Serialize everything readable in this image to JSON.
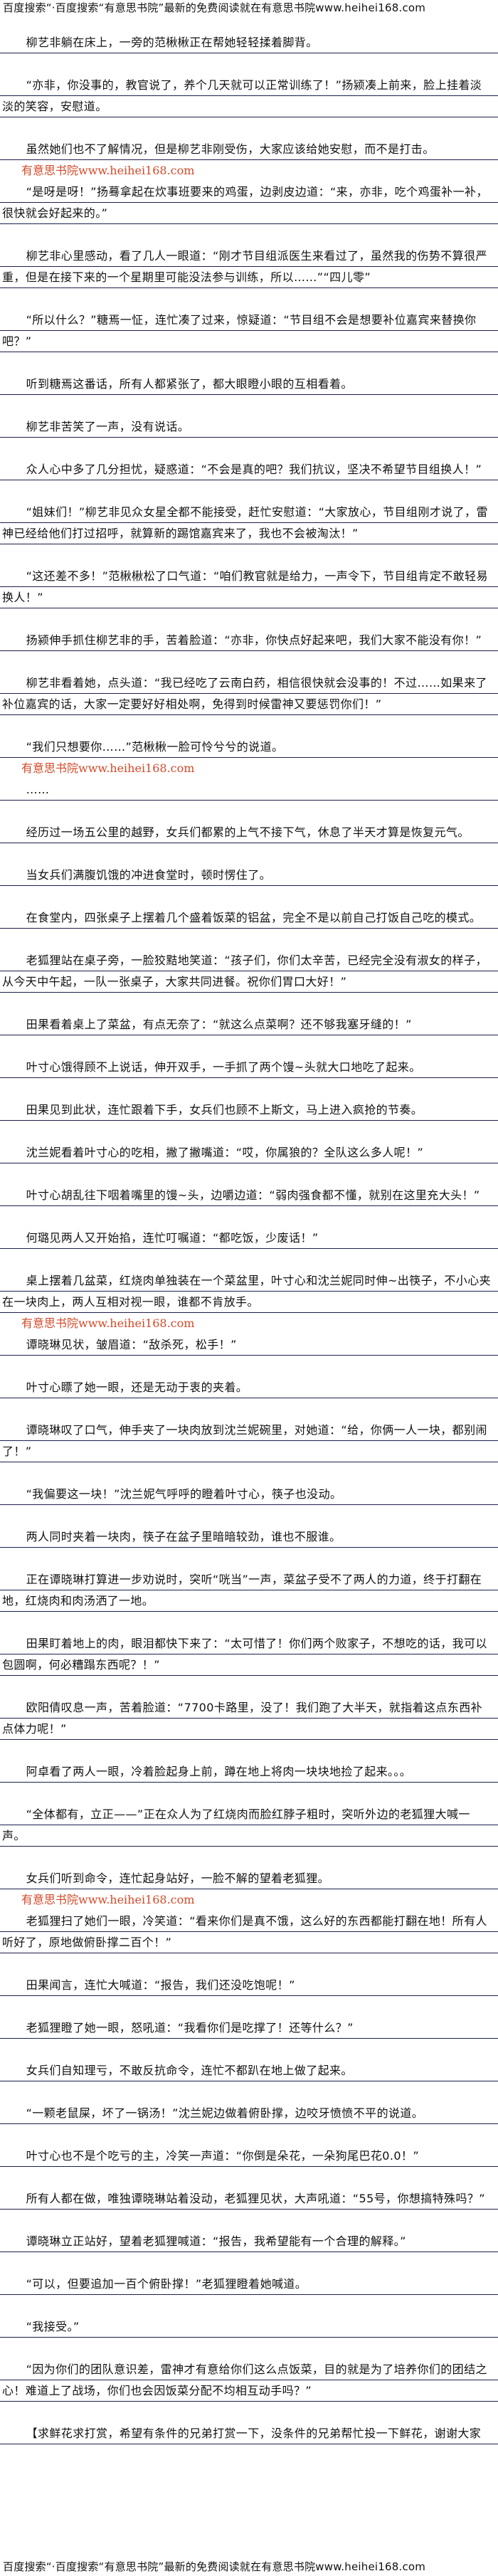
{
  "banner": "百度搜索“·百度搜索“有意思书院”最新的免费阅读就在有意思书院www.heihei168.com",
  "watermark": "有意思书院www.heihei168.com",
  "paragraphs": [
    "柳艺非躺在床上，一旁的范楸楸正在帮她轻轻揉着脚背。",
    "“亦非，你没事的，教官说了，养个几天就可以正常训练了！”扬颍凑上前来，脸上挂着淡淡的笑容，安慰道。",
    "虽然她们也不了解情况，但是柳艺非刚受伤，大家应该给她安慰，而不是打击。",
    "“是呀是呀！”扬蓦拿起在炊事班要来的鸡蛋，边剥皮边道：“来，亦非，吃个鸡蛋补一补，很快就会好起来的。”",
    "柳艺非心里感动，看了几人一眼道：“刚才节目组派医生来看过了，虽然我的伤势不算很严重，但是在接下来的一个星期里可能没法参与训练，所以……”“四儿零”",
    "“所以什么？”糖焉一怔，连忙凑了过来，惊疑道：“节目组不会是想要补位嘉宾来替换你吧？”",
    "听到糖焉这番话，所有人都紧张了，都大眼瞪小眼的互相看着。",
    "柳艺非苦笑了一声，没有说话。",
    "众人心中多了几分担忧，疑惑道：“不会是真的吧？我们抗议，坚决不希望节目组换人！”",
    "“姐妹们！”柳艺非见众女星全都不能接受，赶忙安慰道：“大家放心，节目组刚才说了，雷神已经给他们打过招呼，就算新的踢馆嘉宾来了，我也不会被淘汰！”",
    "“这还差不多！”范楸楸松了口气道：“咱们教官就是给力，一声令下，节目组肯定不敢轻易换人！”",
    "扬颍伸手抓住柳艺非的手，苦着脸道：“亦非，你快点好起来吧，我们大家不能没有你！”",
    "柳艺非看着她，点头道：“我已经吃了云南白药，相信很快就会没事的！不过……如果来了补位嘉宾的话，大家一定要好好相处啊，免得到时候雷神又要惩罚你们！”",
    "“我们只想要你……”范楸楸一脸可怜兮兮的说道。",
    "……",
    "经历过一场五公里的越野，女兵们都累的上气不接下气，休息了半天才算是恢复元气。",
    "当女兵们满腹饥饿的冲进食堂时，顿时愣住了。",
    "在食堂内，四张桌子上摆着几个盛着饭菜的铝盆，完全不是以前自己打饭自己吃的模式。",
    "老狐狸站在桌子旁，一脸狡黠地笑道：“孩子们，你们太辛苦，已经完全没有淑女的样子，从今天中午起，一队一张桌子，大家共同进餐。祝你们胃口大好！”",
    "田果看着桌上了菜盆，有点无奈了：“就这么点菜啊？还不够我塞牙缝的！”",
    "叶寸心饿得顾不上说话，伸开双手，一手抓了两个馒~头就大口地吃了起来。",
    "田果见到此状，连忙跟着下手，女兵们也顾不上斯文，马上进入疯抢的节奏。",
    "沈兰妮看着叶寸心的吃相，撇了撇嘴道：“哎，你属狼的？全队这么多人呢！”",
    "叶寸心胡乱往下咽着嘴里的馒~头，边嚼边道：“弱肉强食都不懂，就别在这里充大头！”",
    "何璐见两人又开始掐，连忙叮嘱道：“都吃饭，少废话！”",
    "桌上摆着几盆菜，红烧肉单独装在一个菜盆里，叶寸心和沈兰妮同时伸~出筷子，不小心夹在一块肉上，两人互相对视一眼，谁都不肯放手。",
    "谭晓琳见状，皱眉道：“敌杀死，松手！”",
    "叶寸心瞟了她一眼，还是无动于衷的夹着。",
    "谭晓琳叹了口气，伸手夹了一块肉放到沈兰妮碗里，对她道：“给，你俩一人一块，都别闹了！”",
    "“我偏要这一块！”沈兰妮气呼呼的瞪着叶寸心，筷子也没动。",
    "两人同时夹着一块肉，筷子在盆子里暗暗较劲，谁也不服谁。",
    "正在谭晓琳打算进一步劝说时，突听“咣当”一声，菜盆子受不了两人的力道，终于打翻在地，红烧肉和肉汤洒了一地。",
    "田果盯着地上的肉，眼泪都快下来了：“太可惜了！你们两个败家子，不想吃的话，我可以包圆啊，何必糟蹋东西呢？！”",
    "欧阳倩叹息一声，苦着脸道：“7700卡路里，没了！我们跑了大半天，就指着这点东西补点体力呢！”",
    "阿卓看了两人一眼，冷着脸起身上前，蹲在地上将肉一块块地捡了起来。。。",
    "“全体都有，立正——”正在众人为了红烧肉而脸红脖子粗时，突听外边的老狐狸大喊一声。",
    "女兵们听到命令，连忙起身站好，一脸不解的望着老狐狸。",
    "老狐狸扫了她们一眼，冷笑道：“看来你们是真不饿，这么好的东西都能打翻在地！所有人听好了，原地做俯卧撑二百个！”",
    "田果闻言，连忙大喊道：“报告，我们还没吃饱呢！”",
    "老狐狸瞪了她一眼，怒吼道：“我看你们是吃撑了！还等什么？”",
    "女兵们自知理亏，不敢反抗命令，连忙不都趴在地上做了起来。",
    "“一颗老鼠屎，坏了一锅汤！”沈兰妮边做着俯卧撑，边咬牙愤愤不平的说道。",
    "叶寸心也不是个吃亏的主，冷笑一声道：“你倒是朵花，一朵狗尾巴花0.0！”",
    "所有人都在做，唯独谭晓琳站着没动，老狐狸见状，大声吼道：“55号，你想搞特殊吗？”",
    "谭晓琳立正站好，望着老狐狸喊道：“报告，我希望能有一个合理的解释。”",
    "“可以，但要追加一百个俯卧撑！”老狐狸瞪着她喊道。",
    "“我接受。”",
    "“因为你们的团队意识差，雷神才有意给你们这么点饭菜，目的就是为了培养你们的团结之心！难道上了战场，你们也会因饭菜分配不均相互动手吗？”",
    "【求鲜花求打赏，希望有条件的兄弟打赏一下，没条件的兄弟帮忙投一下鲜花，谢谢大家"
  ]
}
